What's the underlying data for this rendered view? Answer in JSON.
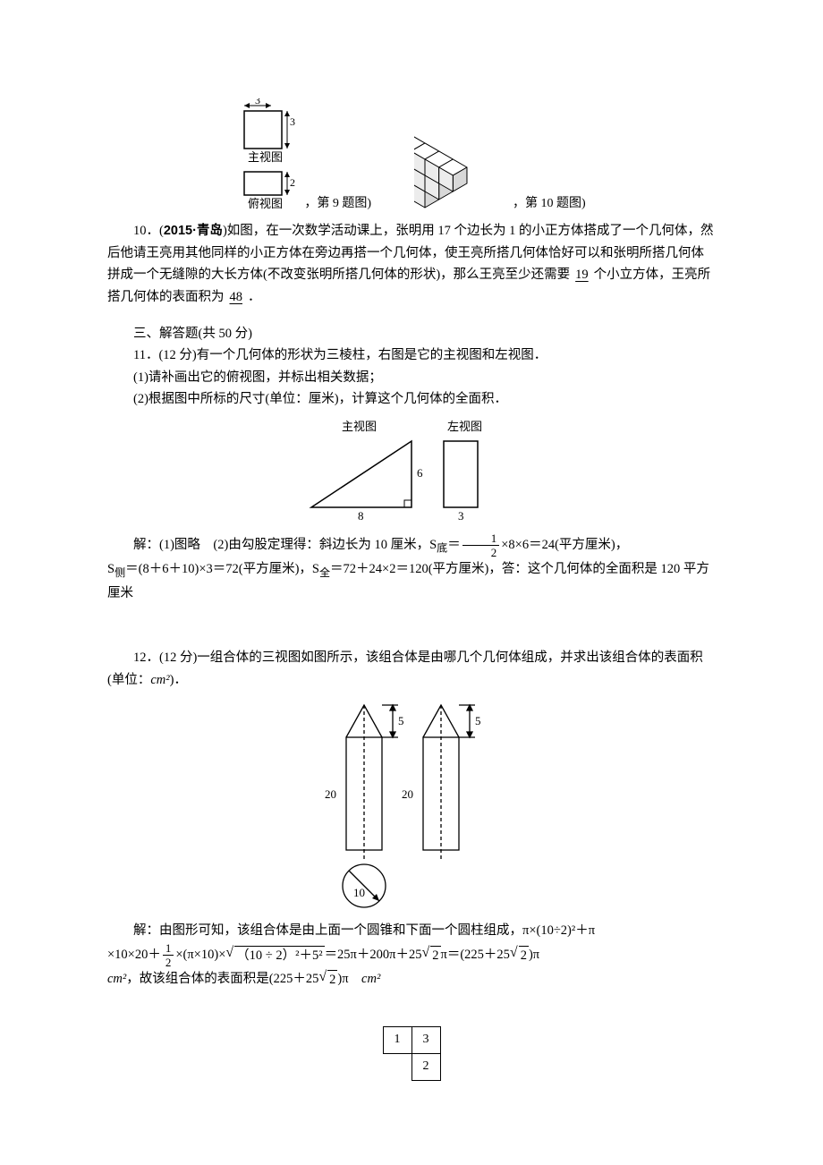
{
  "fig9": {
    "top_dim": "3",
    "right_dim": "3",
    "main_label": "主视图",
    "top_view_dim": "2",
    "top_view_label": "俯视图",
    "caption": "，第 9 题图)"
  },
  "fig10": {
    "caption": "，第 10 题图)"
  },
  "q10": {
    "prefix": "10．(",
    "bold": "2015·青岛",
    "text1": ")如图，在一次数学活动课上，张明用 17 个边长为 1 的小正方体搭成了一个几何体，然后他请王亮用其他同样的小正方体在旁边再搭一个几何体，使王亮所搭几何体恰好可以和张明所搭几何体拼成一个无缝隙的大长方体(不改变张明所搭几何体的形状)，那么王亮至少还需要",
    "ans1": "19",
    "text2": "个小立方体，王亮所搭几何体的表面积为",
    "ans2": "48",
    "text3": "．"
  },
  "section3": "三、解答题(共 50 分)",
  "q11": {
    "num": "11．(12 分)有一个几何体的形状为三棱柱，右图是它的主视图和左视图．",
    "part1": "(1)请补画出它的俯视图，并标出相关数据；",
    "part2": "(2)根据图中所标的尺寸(单位：厘米)，计算这个几何体的全面积．",
    "main_label": "主视图",
    "left_label": "左视图",
    "dim_h": "6",
    "dim_w": "8",
    "dim_d": "3",
    "sol_prefix": "解：(1)图略　(2)由勾股定理得：斜边长为 10 厘米，S",
    "sol_sub1": "底",
    "sol_eq1a": "＝",
    "frac1_num": "1",
    "frac1_den": "2",
    "sol_eq1b": "×8×6＝24(平方厘米)，",
    "sol_line2a": "S",
    "sol_sub2": "侧",
    "sol_line2b": "＝(8＋6＋10)×3＝72(平方厘米)，S",
    "sol_sub3": "全",
    "sol_line2c": "＝72＋24×2＝120(平方厘米)，答：这个几何体的全面积是 120 平方厘米"
  },
  "q12": {
    "num": "12．(12 分)一组合体的三视图如图所示，该组合体是由哪几个几何体组成，并求出该组合体的表面积(单位：",
    "unit": "cm²",
    "num_end": ")．",
    "dim_5a": "5",
    "dim_5b": "5",
    "dim_20a": "20",
    "dim_20b": "20",
    "dim_10": "10",
    "sol_l1": "解：由图形可知，该组合体是由上面一个圆锥和下面一个圆柱组成，π×(10÷2)²＋π",
    "sol_l2a": "×10×20＋",
    "frac_num": "1",
    "frac_den": "2",
    "sol_l2b": "×(π×10)×",
    "radicand": "（10 ÷ 2）²＋5²",
    "sol_l2c": "＝25π＋200π＋25",
    "sqrt2a": "2",
    "sol_l2d": "π＝(225＋25",
    "sqrt2b": "2",
    "sol_l2e": ")π",
    "sol_l3a": "cm²",
    "sol_l3b": "，故该组合体的表面积是(225＋25",
    "sqrt2c": "2",
    "sol_l3c": ")π　",
    "sol_l3d": "cm²"
  },
  "table": {
    "c1": "1",
    "c3": "3",
    "c2": "2"
  }
}
